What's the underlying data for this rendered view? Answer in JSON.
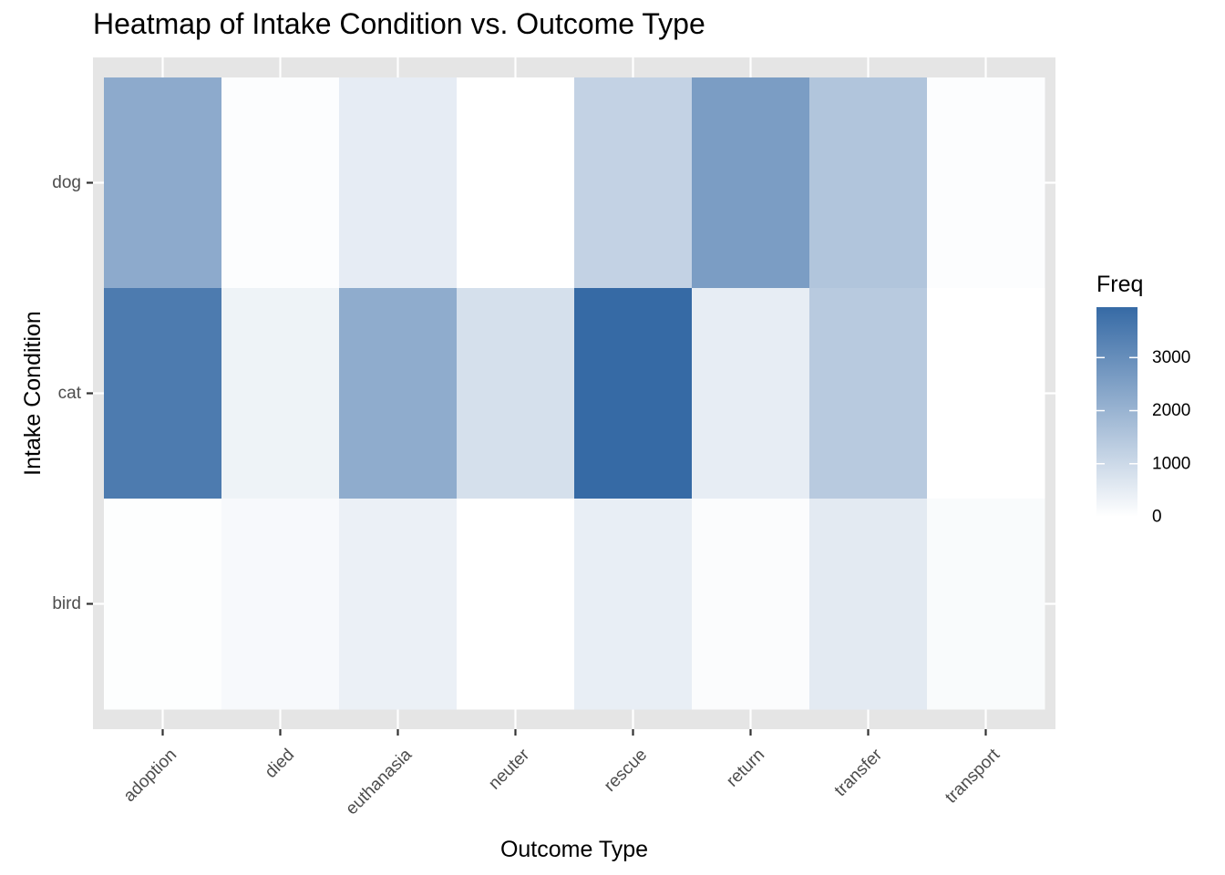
{
  "chart_data": {
    "type": "heatmap",
    "title": "Heatmap of Intake Condition vs. Outcome Type",
    "xlabel": "Outcome Type",
    "ylabel": "Intake Condition",
    "x_categories": [
      "adoption",
      "died",
      "euthanasia",
      "neuter",
      "rescue",
      "return",
      "transfer",
      "transport"
    ],
    "y_categories": [
      "dog",
      "cat",
      "bird"
    ],
    "values": [
      [
        2250,
        60,
        500,
        0,
        1180,
        2600,
        1530,
        60
      ],
      [
        3500,
        330,
        2200,
        830,
        3950,
        480,
        1400,
        0
      ],
      [
        30,
        150,
        400,
        0,
        450,
        70,
        550,
        110
      ]
    ],
    "legend": {
      "title": "Freq",
      "ticks": [
        0,
        1000,
        2000,
        3000
      ],
      "min": 0,
      "max": 3950,
      "position": "right"
    },
    "colors": {
      "low": "#ffffff",
      "high": "#366aa5",
      "panel_bg": "#e5e5e5",
      "grid": "#ffffff"
    },
    "grid": true
  }
}
